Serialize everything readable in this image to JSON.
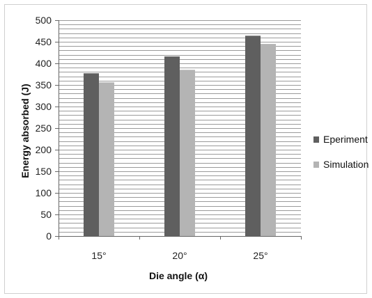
{
  "chart_data": {
    "type": "bar",
    "categories": [
      "15°",
      "20°",
      "25°"
    ],
    "series": [
      {
        "name": "Eperiment",
        "values": [
          377,
          416,
          464
        ],
        "color": "#5f5f5f"
      },
      {
        "name": "Simulation",
        "values": [
          356,
          385,
          445
        ],
        "color": "#b4b4b4"
      }
    ],
    "xlabel": "Die angle (α)",
    "ylabel": "Energy absorbed  (J)",
    "ylim": [
      0,
      500
    ],
    "yticks": [
      0,
      50,
      100,
      150,
      200,
      250,
      300,
      350,
      400,
      450,
      500
    ],
    "minor_step": 10,
    "grid": true,
    "legend": "right"
  }
}
